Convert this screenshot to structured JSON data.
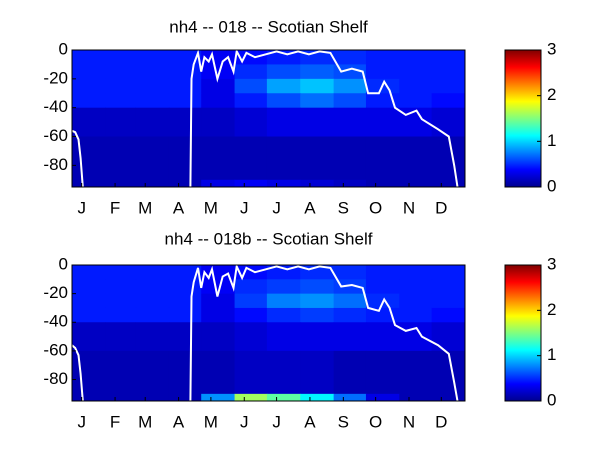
{
  "chart_data": [
    {
      "type": "heatmap",
      "title": "nh4 -- 018 -- Scotian Shelf",
      "xlim": [
        0,
        365
      ],
      "xticks": [
        {
          "value": 9,
          "label": "J"
        },
        {
          "value": 40,
          "label": "F"
        },
        {
          "value": 68,
          "label": "M"
        },
        {
          "value": 99,
          "label": "A"
        },
        {
          "value": 129,
          "label": "M"
        },
        {
          "value": 160,
          "label": "J"
        },
        {
          "value": 190,
          "label": "J"
        },
        {
          "value": 221,
          "label": "A"
        },
        {
          "value": 252,
          "label": "S"
        },
        {
          "value": 282,
          "label": "O"
        },
        {
          "value": 313,
          "label": "N"
        },
        {
          "value": 343,
          "label": "D"
        }
      ],
      "ylim": [
        -95,
        0
      ],
      "yticks": [
        0,
        -20,
        -40,
        -60,
        -80
      ],
      "x_edges": [
        0,
        31,
        59,
        90,
        120,
        151,
        181,
        212,
        243,
        273,
        304,
        334,
        365
      ],
      "y_edges": [
        0,
        -10,
        -20,
        -30,
        -40,
        -60,
        -90,
        -95
      ],
      "z": [
        [
          0.45,
          0.45,
          0.45,
          0.45,
          0.35,
          0.4,
          0.45,
          0.5,
          0.5,
          0.45,
          0.45,
          0.45
        ],
        [
          0.45,
          0.45,
          0.45,
          0.45,
          0.35,
          0.5,
          0.6,
          0.65,
          0.6,
          0.45,
          0.45,
          0.45
        ],
        [
          0.45,
          0.45,
          0.45,
          0.45,
          0.3,
          0.6,
          0.85,
          0.95,
          0.8,
          0.5,
          0.45,
          0.45
        ],
        [
          0.45,
          0.45,
          0.45,
          0.45,
          0.3,
          0.45,
          0.6,
          0.7,
          0.6,
          0.45,
          0.45,
          0.4
        ],
        [
          0.2,
          0.2,
          0.2,
          0.2,
          0.2,
          0.25,
          0.3,
          0.3,
          0.3,
          0.3,
          0.3,
          0.25
        ],
        [
          0.15,
          0.15,
          0.15,
          0.15,
          0.15,
          0.15,
          0.15,
          0.15,
          0.15,
          0.15,
          0.15,
          0.15
        ],
        [
          0.15,
          0.15,
          0.15,
          0.15,
          0.3,
          0.35,
          0.3,
          0.25,
          0.2,
          0.15,
          0.15,
          0.15
        ]
      ],
      "colormap": "jet",
      "clim": [
        0,
        3
      ],
      "cticks": [
        0,
        1,
        2,
        3
      ],
      "line": {
        "color": "#ffffff",
        "x": [
          0,
          3,
          6,
          8,
          10,
          null,
          110,
          111,
          113,
          117,
          120,
          123,
          127,
          130,
          135,
          140,
          145,
          150,
          153,
          158,
          162,
          170,
          180,
          190,
          200,
          210,
          220,
          230,
          240,
          250,
          260,
          270,
          275,
          285,
          290,
          295,
          300,
          310,
          320,
          325,
          340,
          350,
          355,
          358
        ],
        "values": [
          -56,
          -57,
          -62,
          -75,
          -95,
          null,
          -95,
          -20,
          -10,
          -2,
          -15,
          -5,
          -8,
          -3,
          -20,
          -8,
          -5,
          -15,
          -1,
          -8,
          -2,
          -5,
          -3,
          -1,
          -3,
          -1,
          -3,
          -1,
          -2,
          -15,
          -13,
          -15,
          -30,
          -30,
          -22,
          -28,
          -40,
          -45,
          -42,
          -48,
          -55,
          -60,
          -80,
          -95
        ]
      }
    },
    {
      "type": "heatmap",
      "title": "nh4 -- 018b -- Scotian Shelf",
      "xlim": [
        0,
        365
      ],
      "xticks": [
        {
          "value": 9,
          "label": "J"
        },
        {
          "value": 40,
          "label": "F"
        },
        {
          "value": 68,
          "label": "M"
        },
        {
          "value": 99,
          "label": "A"
        },
        {
          "value": 129,
          "label": "M"
        },
        {
          "value": 160,
          "label": "J"
        },
        {
          "value": 190,
          "label": "J"
        },
        {
          "value": 221,
          "label": "A"
        },
        {
          "value": 252,
          "label": "S"
        },
        {
          "value": 282,
          "label": "O"
        },
        {
          "value": 313,
          "label": "N"
        },
        {
          "value": 343,
          "label": "D"
        }
      ],
      "ylim": [
        -95,
        0
      ],
      "yticks": [
        0,
        -20,
        -40,
        -60,
        -80
      ],
      "x_edges": [
        0,
        31,
        59,
        90,
        120,
        151,
        181,
        212,
        243,
        273,
        304,
        334,
        365
      ],
      "y_edges": [
        0,
        -10,
        -20,
        -30,
        -40,
        -60,
        -90,
        -95
      ],
      "z": [
        [
          0.45,
          0.45,
          0.45,
          0.45,
          0.35,
          0.4,
          0.45,
          0.5,
          0.5,
          0.45,
          0.45,
          0.45
        ],
        [
          0.45,
          0.45,
          0.45,
          0.45,
          0.35,
          0.5,
          0.55,
          0.6,
          0.55,
          0.45,
          0.45,
          0.45
        ],
        [
          0.45,
          0.45,
          0.45,
          0.45,
          0.3,
          0.55,
          0.75,
          0.8,
          0.7,
          0.5,
          0.45,
          0.45
        ],
        [
          0.45,
          0.45,
          0.45,
          0.45,
          0.3,
          0.4,
          0.5,
          0.55,
          0.5,
          0.45,
          0.45,
          0.4
        ],
        [
          0.2,
          0.2,
          0.2,
          0.2,
          0.2,
          0.25,
          0.3,
          0.3,
          0.3,
          0.3,
          0.3,
          0.25
        ],
        [
          0.15,
          0.15,
          0.15,
          0.15,
          0.15,
          0.2,
          0.2,
          0.2,
          0.15,
          0.15,
          0.15,
          0.15
        ],
        [
          0.15,
          0.15,
          0.15,
          0.15,
          0.8,
          1.6,
          1.4,
          1.1,
          0.7,
          0.3,
          0.15,
          0.15
        ]
      ],
      "colormap": "jet",
      "clim": [
        0,
        3
      ],
      "cticks": [
        0,
        1,
        2,
        3
      ],
      "line": {
        "color": "#ffffff",
        "x": [
          0,
          3,
          6,
          8,
          10,
          null,
          110,
          111,
          113,
          117,
          120,
          123,
          127,
          130,
          135,
          140,
          145,
          150,
          153,
          158,
          162,
          170,
          180,
          190,
          200,
          210,
          220,
          230,
          240,
          250,
          260,
          270,
          275,
          285,
          290,
          295,
          300,
          310,
          320,
          325,
          340,
          350,
          355,
          358
        ],
        "values": [
          -56,
          -58,
          -63,
          -76,
          -95,
          null,
          -95,
          -22,
          -12,
          -2,
          -16,
          -5,
          -9,
          -3,
          -22,
          -8,
          -6,
          -16,
          -1,
          -9,
          -2,
          -5,
          -3,
          -1,
          -3,
          -1,
          -3,
          -1,
          -2,
          -15,
          -14,
          -16,
          -30,
          -32,
          -24,
          -30,
          -42,
          -46,
          -44,
          -50,
          -56,
          -62,
          -82,
          -95
        ]
      }
    }
  ]
}
